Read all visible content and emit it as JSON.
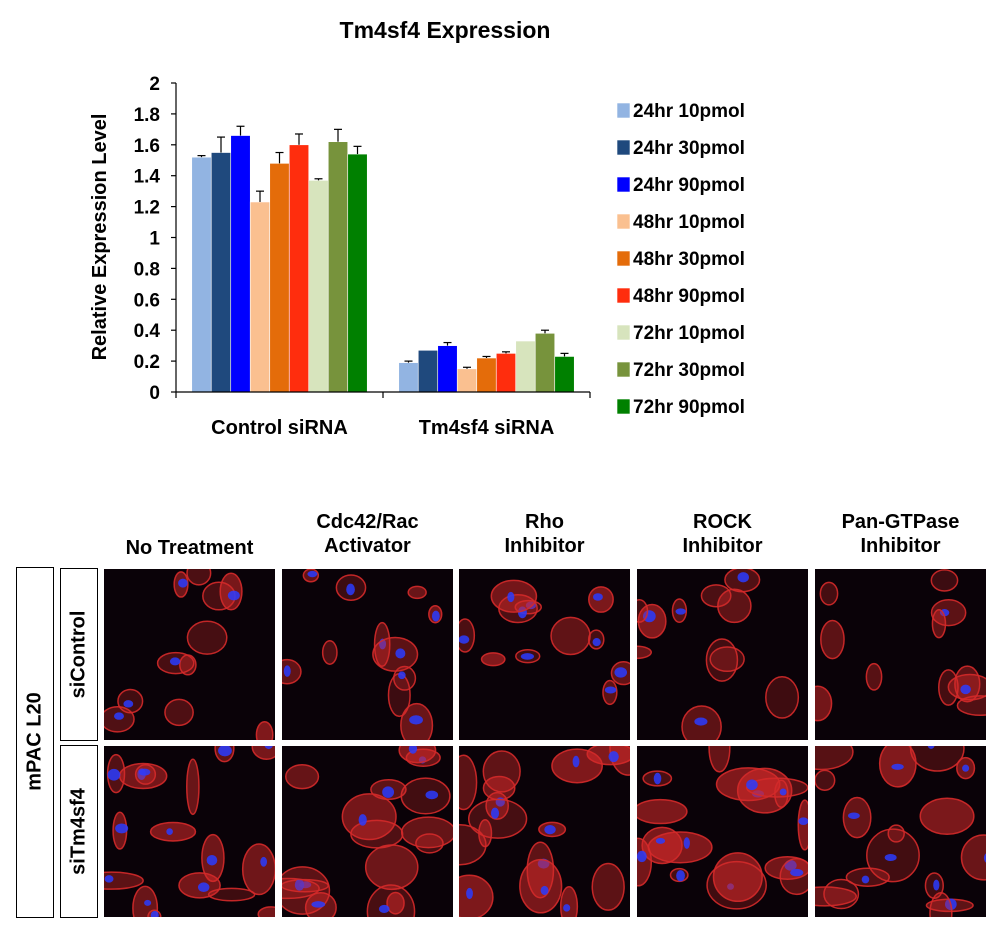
{
  "chart_data": {
    "type": "bar",
    "title": "Tm4sf4 Expression",
    "ylabel": "Relative Expression Level",
    "xlabel": "",
    "ylim": [
      0,
      2
    ],
    "yticks": [
      "0",
      "0.2",
      "0.4",
      "0.6",
      "0.8",
      "1",
      "1.2",
      "1.4",
      "1.6",
      "1.8",
      "2"
    ],
    "categories": [
      "Control siRNA",
      "Tm4sf4 siRNA"
    ],
    "legend_position": "right",
    "series": [
      {
        "name": "24hr 10pmol",
        "color": "#92b4e2",
        "values": [
          1.52,
          0.19
        ],
        "errors": [
          0.01,
          0.01
        ]
      },
      {
        "name": "24hr 30pmol",
        "color": "#1f497d",
        "values": [
          1.55,
          0.27
        ],
        "errors": [
          0.1,
          0.0
        ]
      },
      {
        "name": "24hr 90pmol",
        "color": "#0000ff",
        "values": [
          1.66,
          0.3
        ],
        "errors": [
          0.06,
          0.02
        ]
      },
      {
        "name": "48hr 10pmol",
        "color": "#fac090",
        "values": [
          1.23,
          0.15
        ],
        "errors": [
          0.07,
          0.01
        ]
      },
      {
        "name": "48hr 30pmol",
        "color": "#e46c0a",
        "values": [
          1.48,
          0.22
        ],
        "errors": [
          0.07,
          0.01
        ]
      },
      {
        "name": "48hr 90pmol",
        "color": "#ff2d0d",
        "values": [
          1.6,
          0.25
        ],
        "errors": [
          0.07,
          0.01
        ]
      },
      {
        "name": "72hr 10pmol",
        "color": "#d7e4bd",
        "values": [
          1.37,
          0.33
        ],
        "errors": [
          0.01,
          0.0
        ]
      },
      {
        "name": "72hr 30pmol",
        "color": "#77933c",
        "values": [
          1.62,
          0.38
        ],
        "errors": [
          0.08,
          0.02
        ]
      },
      {
        "name": "72hr 90pmol",
        "color": "#008000",
        "values": [
          1.54,
          0.23
        ],
        "errors": [
          0.05,
          0.02
        ]
      }
    ]
  },
  "image_grid": {
    "columns": [
      [
        "No Treatment"
      ],
      [
        "Cdc42/Rac",
        "Activator"
      ],
      [
        "Rho",
        "Inhibitor"
      ],
      [
        "ROCK",
        "Inhibitor"
      ],
      [
        "Pan-GTPase",
        "Inhibitor"
      ]
    ],
    "group_label": "mPAC L20",
    "rows": [
      "siControl",
      "siTm4sf4"
    ],
    "stain_colors": {
      "membrane": "#d42a2a",
      "nucleus": "#2a3cff",
      "background": "#0a0208"
    }
  }
}
